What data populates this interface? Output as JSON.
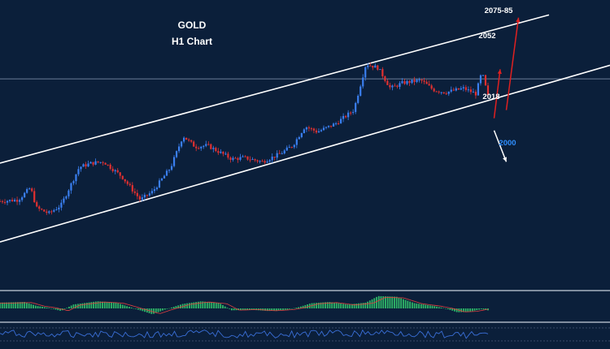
{
  "chart_data": {
    "type": "candlestick",
    "instrument": "GOLD",
    "timeframe": "H1 Chart",
    "title": "GOLD",
    "subtitle": "H1 Chart",
    "annotations": [
      {
        "text": "2075-85",
        "color": "#ffffff"
      },
      {
        "text": "2052",
        "color": "#ffffff"
      },
      {
        "text": "2018",
        "color": "#ffffff"
      },
      {
        "text": "2000",
        "color": "#2f8fff"
      }
    ],
    "price_path": [
      [
        0,
        1975
      ],
      [
        0.03,
        1976
      ],
      [
        0.05,
        1985
      ],
      [
        0.06,
        1970
      ],
      [
        0.08,
        1966
      ],
      [
        0.1,
        1972
      ],
      [
        0.13,
        2000
      ],
      [
        0.15,
        2003
      ],
      [
        0.17,
        2004
      ],
      [
        0.2,
        1993
      ],
      [
        0.23,
        1976
      ],
      [
        0.25,
        1982
      ],
      [
        0.28,
        2000
      ],
      [
        0.3,
        2023
      ],
      [
        0.32,
        2015
      ],
      [
        0.34,
        2016
      ],
      [
        0.36,
        2011
      ],
      [
        0.38,
        2006
      ],
      [
        0.4,
        2007
      ],
      [
        0.43,
        2004
      ],
      [
        0.46,
        2010
      ],
      [
        0.48,
        2016
      ],
      [
        0.5,
        2030
      ],
      [
        0.52,
        2026
      ],
      [
        0.55,
        2032
      ],
      [
        0.58,
        2042
      ],
      [
        0.6,
        2076
      ],
      [
        0.62,
        2073
      ],
      [
        0.64,
        2058
      ],
      [
        0.66,
        2062
      ],
      [
        0.69,
        2064
      ],
      [
        0.71,
        2057
      ],
      [
        0.73,
        2055
      ],
      [
        0.76,
        2058
      ],
      [
        0.78,
        2054
      ],
      [
        0.79,
        2070
      ],
      [
        0.8,
        2052
      ]
    ],
    "channel": {
      "upper": [
        [
          0,
          2003
        ],
        [
          0.9,
          2112
        ]
      ],
      "lower": [
        [
          0,
          1945
        ],
        [
          1.0,
          2075
        ]
      ]
    },
    "level_line": 2065,
    "ylim": [
      1920,
      2120
    ],
    "arrows": [
      {
        "from": [
          0.81,
          2036
        ],
        "to": [
          0.82,
          2072
        ],
        "color": "#e02020"
      },
      {
        "from": [
          0.83,
          2042
        ],
        "to": [
          0.85,
          2110
        ],
        "color": "#e02020"
      },
      {
        "from": [
          0.81,
          2027
        ],
        "to": [
          0.83,
          2004
        ],
        "color": "#ffffff"
      }
    ],
    "macd_envelope": [
      [
        0,
        0.45
      ],
      [
        0.04,
        0.5
      ],
      [
        0.06,
        0.2
      ],
      [
        0.08,
        0.05
      ],
      [
        0.1,
        -0.2
      ],
      [
        0.12,
        0.3
      ],
      [
        0.16,
        0.55
      ],
      [
        0.19,
        0.45
      ],
      [
        0.22,
        0.0
      ],
      [
        0.25,
        -0.45
      ],
      [
        0.27,
        -0.1
      ],
      [
        0.3,
        0.35
      ],
      [
        0.33,
        0.55
      ],
      [
        0.36,
        0.4
      ],
      [
        0.38,
        -0.15
      ],
      [
        0.41,
        -0.1
      ],
      [
        0.44,
        -0.2
      ],
      [
        0.47,
        -0.1
      ],
      [
        0.49,
        0.1
      ],
      [
        0.51,
        0.4
      ],
      [
        0.54,
        0.5
      ],
      [
        0.57,
        0.3
      ],
      [
        0.6,
        0.45
      ],
      [
        0.62,
        0.95
      ],
      [
        0.65,
        0.9
      ],
      [
        0.68,
        0.4
      ],
      [
        0.71,
        0.2
      ],
      [
        0.73,
        0.0
      ],
      [
        0.75,
        -0.3
      ],
      [
        0.77,
        -0.25
      ],
      [
        0.79,
        -0.05
      ],
      [
        0.8,
        -0.15
      ]
    ]
  }
}
